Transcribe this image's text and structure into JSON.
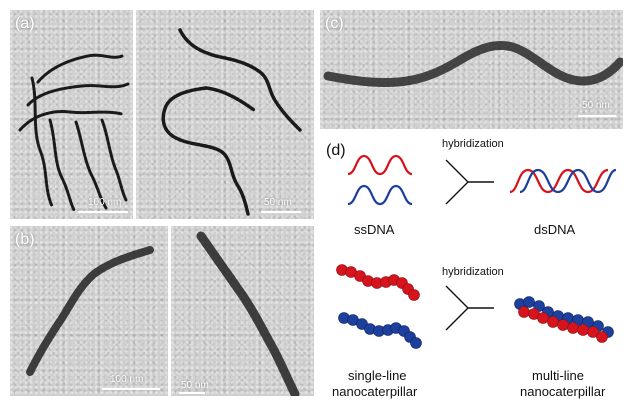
{
  "panels": {
    "a": {
      "letter": "(a)",
      "left_scale": "100 nm",
      "right_scale": "50 nm"
    },
    "b": {
      "letter": "(b)",
      "left_scale": "100 nm",
      "right_scale": "50 nm"
    },
    "c": {
      "letter": "(c)",
      "scale": "50 nm"
    },
    "d": {
      "letter": "(d)",
      "top_arrow_label": "hybridization",
      "ssdna_label": "ssDNA",
      "dsdna_label": "dsDNA",
      "bottom_arrow_label": "hybridization",
      "single_line_label_1": "single-line",
      "single_line_label_2": "nanocaterpillar",
      "multi_line_label_1": "multi-line",
      "multi_line_label_2": "nanocaterpillar"
    }
  },
  "colors": {
    "red_strand": "#d7141d",
    "blue_strand": "#1d3f9e",
    "micrograph_bg": "#cfcfcf",
    "strand_dark": "#1a1a1a"
  }
}
